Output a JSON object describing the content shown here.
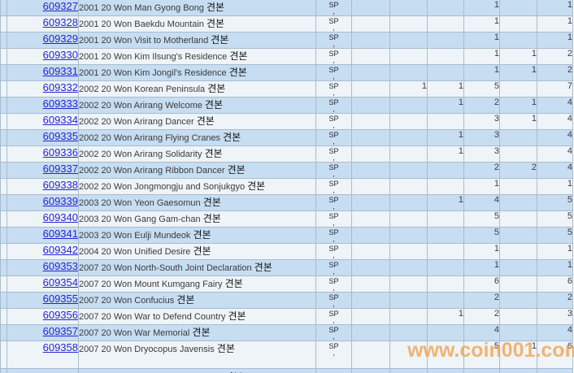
{
  "watermark": "www.coin001.com",
  "sp_label": {
    "line1": "SP",
    "line2": ","
  },
  "partial_row": {
    "desc": "견본"
  },
  "rows": [
    {
      "id": "609327",
      "desc": "2001 20 Won Man Gyong Bong",
      "kr": "견본",
      "v1": "",
      "v2": "",
      "v3": "",
      "v4": "1",
      "v5": "",
      "total": "1"
    },
    {
      "id": "609328",
      "desc": "2001 20 Won Baekdu Mountain",
      "kr": "견본",
      "v1": "",
      "v2": "",
      "v3": "",
      "v4": "1",
      "v5": "",
      "total": "1"
    },
    {
      "id": "609329",
      "desc": "2001 20 Won Visit to Motherland",
      "kr": "견본",
      "v1": "",
      "v2": "",
      "v3": "",
      "v4": "1",
      "v5": "",
      "total": "1"
    },
    {
      "id": "609330",
      "desc": "2001 20 Won Kim Ilsung's Residence",
      "kr": "견본",
      "v1": "",
      "v2": "",
      "v3": "",
      "v4": "1",
      "v5": "1",
      "total": "2"
    },
    {
      "id": "609331",
      "desc": "2001 20 Won Kim Jongil's Residence",
      "kr": "견본",
      "v1": "",
      "v2": "",
      "v3": "",
      "v4": "1",
      "v5": "1",
      "total": "2"
    },
    {
      "id": "609332",
      "desc": "2002 20 Won Korean Peninsula",
      "kr": "견본",
      "v1": "",
      "v2": "1",
      "v3": "1",
      "v4": "5",
      "v5": "",
      "total": "7"
    },
    {
      "id": "609333",
      "desc": "2002 20 Won Arirang Welcome",
      "kr": "견본",
      "v1": "",
      "v2": "",
      "v3": "1",
      "v4": "2",
      "v5": "1",
      "total": "4"
    },
    {
      "id": "609334",
      "desc": "2002 20 Won Arirang Dancer",
      "kr": "견본",
      "v1": "",
      "v2": "",
      "v3": "",
      "v4": "3",
      "v5": "1",
      "total": "4"
    },
    {
      "id": "609335",
      "desc": "2002 20 Won Arirang Flying Cranes",
      "kr": "견본",
      "v1": "",
      "v2": "",
      "v3": "1",
      "v4": "3",
      "v5": "",
      "total": "4"
    },
    {
      "id": "609336",
      "desc": "2002 20 Won Arirang Solidarity",
      "kr": "견본",
      "v1": "",
      "v2": "",
      "v3": "1",
      "v4": "3",
      "v5": "",
      "total": "4"
    },
    {
      "id": "609337",
      "desc": "2002 20 Won Arirang Ribbon Dancer",
      "kr": "견본",
      "v1": "",
      "v2": "",
      "v3": "",
      "v4": "2",
      "v5": "2",
      "total": "4"
    },
    {
      "id": "609338",
      "desc": "2002 20 Won Jongmongju and Sonjukgyo",
      "kr": "견본",
      "v1": "",
      "v2": "",
      "v3": "",
      "v4": "1",
      "v5": "",
      "total": "1"
    },
    {
      "id": "609339",
      "desc": "2003 20 Won Yeon Gaesomun",
      "kr": "견본",
      "v1": "",
      "v2": "",
      "v3": "1",
      "v4": "4",
      "v5": "",
      "total": "5"
    },
    {
      "id": "609340",
      "desc": "2003 20 Won Gang Gam-chan",
      "kr": "견본",
      "v1": "",
      "v2": "",
      "v3": "",
      "v4": "5",
      "v5": "",
      "total": "5"
    },
    {
      "id": "609341",
      "desc": "2003 20 Won Eulji Mundeok",
      "kr": "견본",
      "v1": "",
      "v2": "",
      "v3": "",
      "v4": "5",
      "v5": "",
      "total": "5"
    },
    {
      "id": "609342",
      "desc": "2004 20 Won Unified Desire",
      "kr": "견본",
      "v1": "",
      "v2": "",
      "v3": "",
      "v4": "1",
      "v5": "",
      "total": "1"
    },
    {
      "id": "609353",
      "desc": "2007 20 Won North-South Joint Declaration",
      "kr": "견본",
      "v1": "",
      "v2": "",
      "v3": "",
      "v4": "1",
      "v5": "",
      "total": "1"
    },
    {
      "id": "609354",
      "desc": "2007 20 Won Mount Kumgang Fairy",
      "kr": "견본",
      "v1": "",
      "v2": "",
      "v3": "",
      "v4": "6",
      "v5": "",
      "total": "6"
    },
    {
      "id": "609355",
      "desc": "2007 20 Won Confucius",
      "kr": "견본",
      "v1": "",
      "v2": "",
      "v3": "",
      "v4": "2",
      "v5": "",
      "total": "2"
    },
    {
      "id": "609356",
      "desc": "2007 20 Won War to Defend Country",
      "kr": "견본",
      "v1": "",
      "v2": "",
      "v3": "1",
      "v4": "2",
      "v5": "",
      "total": "3"
    },
    {
      "id": "609357",
      "desc": "2007 20 Won War Memorial",
      "kr": "견본",
      "v1": "",
      "v2": "",
      "v3": "",
      "v4": "4",
      "v5": "",
      "total": "4"
    },
    {
      "id": "609358",
      "desc": "2007 20 Won Dryocopus Javensis",
      "kr": "견본",
      "v1": "",
      "v2": "",
      "v3": "",
      "v4": "5",
      "v5": "1",
      "total": "6"
    }
  ]
}
